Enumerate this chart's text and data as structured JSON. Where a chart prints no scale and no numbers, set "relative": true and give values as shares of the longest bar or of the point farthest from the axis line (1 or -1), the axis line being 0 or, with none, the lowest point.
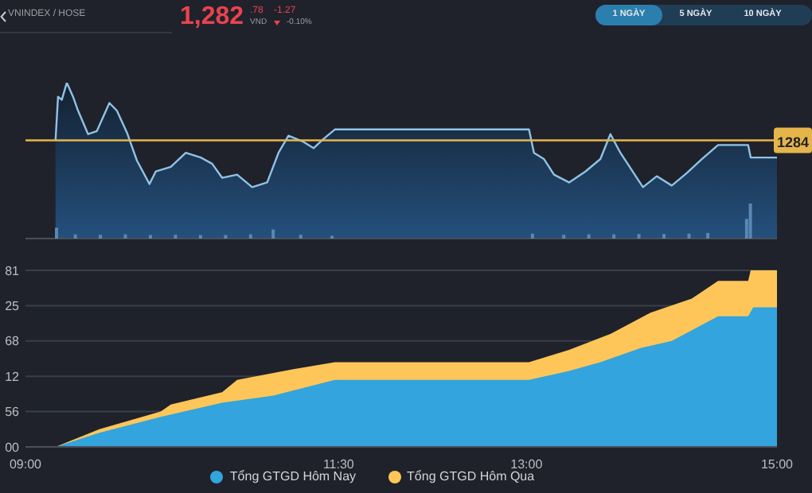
{
  "chart_data": [
    {
      "type": "area",
      "title": "VNINDEX / HOSE",
      "annotations": [
        "1,282",
        ".78",
        "VND",
        "-1.27",
        "-0.10%",
        "1 NGÀY",
        "5 NGÀY",
        "10 NGÀY",
        "1284"
      ],
      "relative": true,
      "xlim": [
        9,
        15
      ],
      "x": [
        9.24,
        9.26,
        9.29,
        9.33,
        9.38,
        9.42,
        9.5,
        9.57,
        9.67,
        9.73,
        9.81,
        9.89,
        9.99,
        10.04,
        10.16,
        10.28,
        10.4,
        10.49,
        10.57,
        10.69,
        10.81,
        10.93,
        11.02,
        11.1,
        11.22,
        11.3,
        11.38,
        11.47,
        13.02,
        13.06,
        13.14,
        13.22,
        13.34,
        13.47,
        13.59,
        13.67,
        13.75,
        13.93,
        14.04,
        14.16,
        14.28,
        14.4,
        14.53,
        14.77,
        14.79,
        15
      ],
      "series": [
        {
          "color": "#8fc3e6",
          "values": [
            0.63,
            0.91,
            0.89,
            1.0,
            0.91,
            0.82,
            0.67,
            0.69,
            0.87,
            0.82,
            0.68,
            0.5,
            0.35,
            0.43,
            0.46,
            0.55,
            0.52,
            0.48,
            0.39,
            0.41,
            0.33,
            0.36,
            0.55,
            0.66,
            0.62,
            0.58,
            0.64,
            0.7,
            0.7,
            0.55,
            0.51,
            0.41,
            0.36,
            0.43,
            0.51,
            0.67,
            0.55,
            0.33,
            0.4,
            0.34,
            0.42,
            0.51,
            0.6,
            0.6,
            0.52,
            0.52
          ]
        }
      ],
      "ref_lines": [
        {
          "axis": "y",
          "value": 0.63,
          "color": "#e6b54a"
        }
      ]
    },
    {
      "type": "bar",
      "relative": true,
      "xlim": [
        9,
        15
      ],
      "x": [
        9.25,
        9.4,
        9.6,
        9.8,
        10.0,
        10.2,
        10.4,
        10.6,
        10.8,
        10.98,
        11.2,
        11.45,
        13.05,
        13.3,
        13.5,
        13.7,
        13.9,
        14.1,
        14.3,
        14.45,
        14.76,
        14.79
      ],
      "series": [
        {
          "color": "#5a88b5",
          "values": [
            0.31,
            0.12,
            0.11,
            0.12,
            0.1,
            0.11,
            0.1,
            0.1,
            0.12,
            0.26,
            0.11,
            0.08,
            0.14,
            0.11,
            0.12,
            0.12,
            0.13,
            0.13,
            0.14,
            0.16,
            0.56,
            1.0
          ]
        }
      ]
    },
    {
      "type": "area",
      "relative": true,
      "annotations": [
        "00",
        "56",
        "12",
        "68",
        "25",
        "81"
      ],
      "xlim": [
        9,
        15
      ],
      "xticks": [
        {
          "value": 9,
          "label": "09:00"
        },
        {
          "value": 11.5,
          "label": "11:30"
        },
        {
          "value": 13,
          "label": "13:00"
        },
        {
          "value": 15,
          "label": "15:00"
        }
      ],
      "grid": "y",
      "legend": "bottom",
      "series": [
        {
          "name": "Tổng GTGD Hôm Nay",
          "color": "#33a4dd",
          "x": [
            9,
            9.24,
            9.59,
            10.08,
            10.57,
            10.98,
            11.14,
            11.47,
            13.02,
            13.34,
            13.59,
            13.91,
            14.16,
            14.53,
            14.77,
            14.81,
            15
          ],
          "values": [
            0,
            0,
            0.08,
            0.17,
            0.25,
            0.29,
            0.32,
            0.38,
            0.38,
            0.43,
            0.48,
            0.56,
            0.6,
            0.74,
            0.74,
            0.79,
            0.79
          ]
        },
        {
          "name": "Tổng GTGD Hôm Qua",
          "color": "#fec659",
          "x": [
            9,
            9.24,
            9.59,
            10.08,
            10.16,
            10.57,
            10.69,
            11.14,
            11.47,
            13.02,
            13.34,
            13.67,
            13.99,
            14.32,
            14.53,
            14.77,
            14.79,
            15
          ],
          "values": [
            0,
            0,
            0.1,
            0.2,
            0.24,
            0.31,
            0.38,
            0.44,
            0.48,
            0.48,
            0.55,
            0.64,
            0.76,
            0.84,
            0.94,
            0.94,
            1.0,
            1.0
          ]
        }
      ]
    }
  ]
}
